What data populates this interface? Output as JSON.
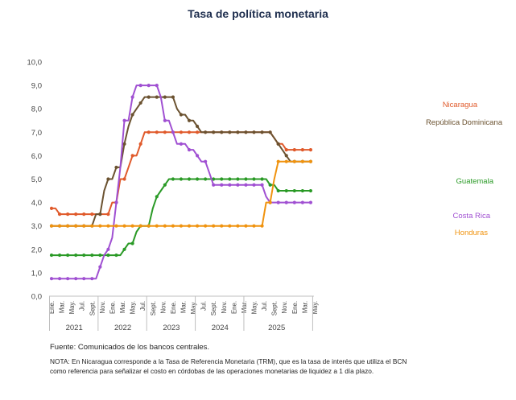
{
  "title": "Tasa de política monetaria",
  "source": "Fuente: Comunicados de los bancos centrales.",
  "note": "NOTA: En Nicaragua corresponde a la Tasa de Referencia Monetaria (TRM), que es la tasa de interés que utiliza el BCN como referencia para señalizar el costo en córdobas de las operaciones monetarias de liquidez a 1 día plazo.",
  "chart_data": {
    "type": "line",
    "title": "Tasa de política monetaria",
    "ylim": [
      0,
      10
    ],
    "yticks": [
      "0,0",
      "1,0",
      "2,0",
      "3,0",
      "4,0",
      "5,0",
      "6,0",
      "7,0",
      "8,0",
      "9,0",
      "10,0"
    ],
    "x_tick_labels": [
      "Ene.",
      "Mar.",
      "May.",
      "Jul.",
      "Sept.",
      "Nov.",
      "Ene.",
      "Mar.",
      "May.",
      "Jul.",
      "Sept.",
      "Nov.",
      "Ene.",
      "Mar.",
      "May.",
      "Jul.",
      "Sept.",
      "Nov.",
      "Ene.",
      "Mar.",
      "May.",
      "Jul.",
      "Sept.",
      "Nov.",
      "Ene.",
      "Mar.",
      "May."
    ],
    "years": [
      "2021",
      "2022",
      "2023",
      "2024",
      "2025"
    ],
    "grid": false,
    "legend": "inline labels at right",
    "series": [
      {
        "name": "Nicaragua",
        "color": "#e05a2b",
        "values": [
          3.75,
          3.75,
          3.5,
          3.5,
          3.5,
          3.5,
          3.5,
          3.5,
          3.5,
          3.5,
          3.5,
          3.5,
          3.5,
          3.5,
          3.5,
          4.0,
          4.0,
          5.0,
          5.0,
          5.5,
          6.0,
          6.0,
          6.5,
          7.0,
          7.0,
          7.0,
          7.0,
          7.0,
          7.0,
          7.0,
          7.0,
          7.0,
          7.0,
          7.0,
          7.0,
          7.0,
          7.0,
          7.0,
          7.0,
          7.0,
          7.0,
          7.0,
          7.0,
          7.0,
          7.0,
          7.0,
          7.0,
          7.0,
          7.0,
          7.0,
          7.0,
          7.0,
          7.0,
          7.0,
          7.0,
          6.75,
          6.5,
          6.5,
          6.25,
          6.25,
          6.25,
          6.25,
          6.25,
          6.25,
          6.25
        ]
      },
      {
        "name": "República Dominicana",
        "color": "#6b5230",
        "values": [
          3.0,
          3.0,
          3.0,
          3.0,
          3.0,
          3.0,
          3.0,
          3.0,
          3.0,
          3.0,
          3.0,
          3.5,
          3.5,
          4.5,
          5.0,
          5.0,
          5.5,
          5.5,
          6.5,
          7.25,
          7.75,
          8.0,
          8.25,
          8.5,
          8.5,
          8.5,
          8.5,
          8.5,
          8.5,
          8.5,
          8.5,
          8.0,
          7.75,
          7.75,
          7.5,
          7.5,
          7.25,
          7.0,
          7.0,
          7.0,
          7.0,
          7.0,
          7.0,
          7.0,
          7.0,
          7.0,
          7.0,
          7.0,
          7.0,
          7.0,
          7.0,
          7.0,
          7.0,
          7.0,
          7.0,
          6.75,
          6.5,
          6.25,
          6.0,
          5.75,
          5.75,
          5.75,
          5.75,
          5.75,
          5.75
        ]
      },
      {
        "name": "Guatemala",
        "color": "#2a9a26",
        "values": [
          1.75,
          1.75,
          1.75,
          1.75,
          1.75,
          1.75,
          1.75,
          1.75,
          1.75,
          1.75,
          1.75,
          1.75,
          1.75,
          1.75,
          1.75,
          1.75,
          1.75,
          1.75,
          2.0,
          2.25,
          2.25,
          2.75,
          3.0,
          3.0,
          3.0,
          3.75,
          4.25,
          4.5,
          4.75,
          5.0,
          5.0,
          5.0,
          5.0,
          5.0,
          5.0,
          5.0,
          5.0,
          5.0,
          5.0,
          5.0,
          5.0,
          5.0,
          5.0,
          5.0,
          5.0,
          5.0,
          5.0,
          5.0,
          5.0,
          5.0,
          5.0,
          5.0,
          5.0,
          5.0,
          4.75,
          4.75,
          4.5,
          4.5,
          4.5,
          4.5,
          4.5,
          4.5,
          4.5,
          4.5,
          4.5
        ]
      },
      {
        "name": "Costa Rica",
        "color": "#a050d2",
        "values": [
          0.75,
          0.75,
          0.75,
          0.75,
          0.75,
          0.75,
          0.75,
          0.75,
          0.75,
          0.75,
          0.75,
          0.75,
          1.25,
          1.75,
          2.0,
          2.5,
          4.0,
          5.5,
          7.5,
          7.5,
          8.5,
          9.0,
          9.0,
          9.0,
          9.0,
          9.0,
          9.0,
          8.5,
          7.5,
          7.5,
          7.0,
          6.5,
          6.5,
          6.5,
          6.25,
          6.25,
          6.0,
          5.75,
          5.75,
          5.25,
          4.75,
          4.75,
          4.75,
          4.75,
          4.75,
          4.75,
          4.75,
          4.75,
          4.75,
          4.75,
          4.75,
          4.75,
          4.75,
          4.25,
          4.0,
          4.0,
          4.0,
          4.0,
          4.0,
          4.0,
          4.0,
          4.0,
          4.0,
          4.0,
          4.0
        ]
      },
      {
        "name": "Honduras",
        "color": "#f0930f",
        "values": [
          3.0,
          3.0,
          3.0,
          3.0,
          3.0,
          3.0,
          3.0,
          3.0,
          3.0,
          3.0,
          3.0,
          3.0,
          3.0,
          3.0,
          3.0,
          3.0,
          3.0,
          3.0,
          3.0,
          3.0,
          3.0,
          3.0,
          3.0,
          3.0,
          3.0,
          3.0,
          3.0,
          3.0,
          3.0,
          3.0,
          3.0,
          3.0,
          3.0,
          3.0,
          3.0,
          3.0,
          3.0,
          3.0,
          3.0,
          3.0,
          3.0,
          3.0,
          3.0,
          3.0,
          3.0,
          3.0,
          3.0,
          3.0,
          3.0,
          3.0,
          3.0,
          3.0,
          3.0,
          4.0,
          4.0,
          5.0,
          5.75,
          5.75,
          5.75,
          5.75,
          5.75,
          5.75,
          5.75,
          5.75,
          5.75
        ]
      }
    ]
  }
}
